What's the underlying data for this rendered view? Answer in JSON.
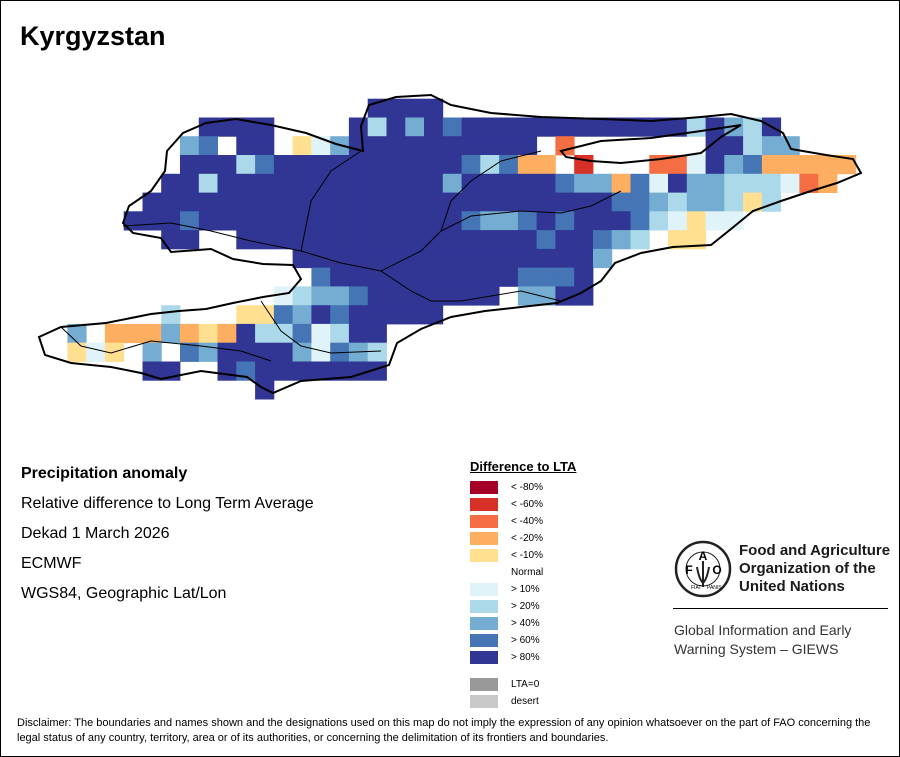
{
  "title": "Kyrgyzstan",
  "info": {
    "heading": "Precipitation anomaly",
    "subtitle": "Relative difference to Long Term Average",
    "period": "Dekad 1 March 2026",
    "source": "ECMWF",
    "projection": "WGS84, Geographic Lat/Lon"
  },
  "legend": {
    "title": "Difference to LTA",
    "items": [
      {
        "code": "a",
        "label": "< -80%",
        "color": "#a50026"
      },
      {
        "code": "b",
        "label": "< -60%",
        "color": "#d73027"
      },
      {
        "code": "c",
        "label": "< -40%",
        "color": "#f46d43"
      },
      {
        "code": "d",
        "label": "< -20%",
        "color": "#fdae61"
      },
      {
        "code": "e",
        "label": "< -10%",
        "color": "#fee090"
      },
      {
        "code": ".",
        "label": "Normal",
        "color": "#ffffff"
      },
      {
        "code": "f",
        "label": "> 10%",
        "color": "#e0f3f8"
      },
      {
        "code": "g",
        "label": "> 20%",
        "color": "#abd9e9"
      },
      {
        "code": "h",
        "label": "> 40%",
        "color": "#74add1"
      },
      {
        "code": "i",
        "label": "> 60%",
        "color": "#4575b4"
      },
      {
        "code": "j",
        "label": "> 80%",
        "color": "#313695"
      }
    ],
    "extra": [
      {
        "label": "LTA=0",
        "color": "#999999"
      },
      {
        "label": "desert",
        "color": "#c8c8c8"
      }
    ]
  },
  "map_cells": [
    "..................jjjj.......................",
    ".........jjjj....jgjhjijjjjjjjjjjjjgjhgj.....",
    "........hi.jj.efhjjjjjjjjjj.c.......jjghh....",
    "........jjjgijjjjjjjjjjigidd.b...ccfjhiddddd.",
    ".......jjgjjjjjjjjjjjjhjjjjjihhdifjhhgggfcd..",
    "......jjjjjjjjjjjjjjjjjjjjjjjjjiihghhgeg.....",
    ".....jjjijjjjjjjjjjjjjjihhijijjjigfeff.......",
    ".......jj..jjjjjjjjjjjjjjjjijjihg.ee........",
    "..............jjjjjjjjjjjjjjjjh..............",
    "...............ijjjjjjjjjjiiij...............",
    ".............fghhijjjjjjj.hhjj...............",
    ".......g...eeihjijjjjj.......................",
    "..h.dddhdedjggifgjj..........................",
    "..efe.h.ihjjjjhfihg..........................",
    "......jj..jijjjjjjj..........................",
    "............j................................"
  ],
  "organization": {
    "name_line1": "Food and Agriculture",
    "name_line2": "Organization of the",
    "name_line3": "United Nations",
    "logo_letters": "FAO FIAT PANIS",
    "program_line1": "Global Information and Early",
    "program_line2": "Warning System – GIEWS"
  },
  "disclaimer": "Disclaimer: The boundaries and names shown and the designations used on this map do not imply the expression of any opinion whatsoever on the part of FAO concerning the legal status of any country, territory, area or of its authorities, or concerning the delimitation of its frontiers and boundaries."
}
